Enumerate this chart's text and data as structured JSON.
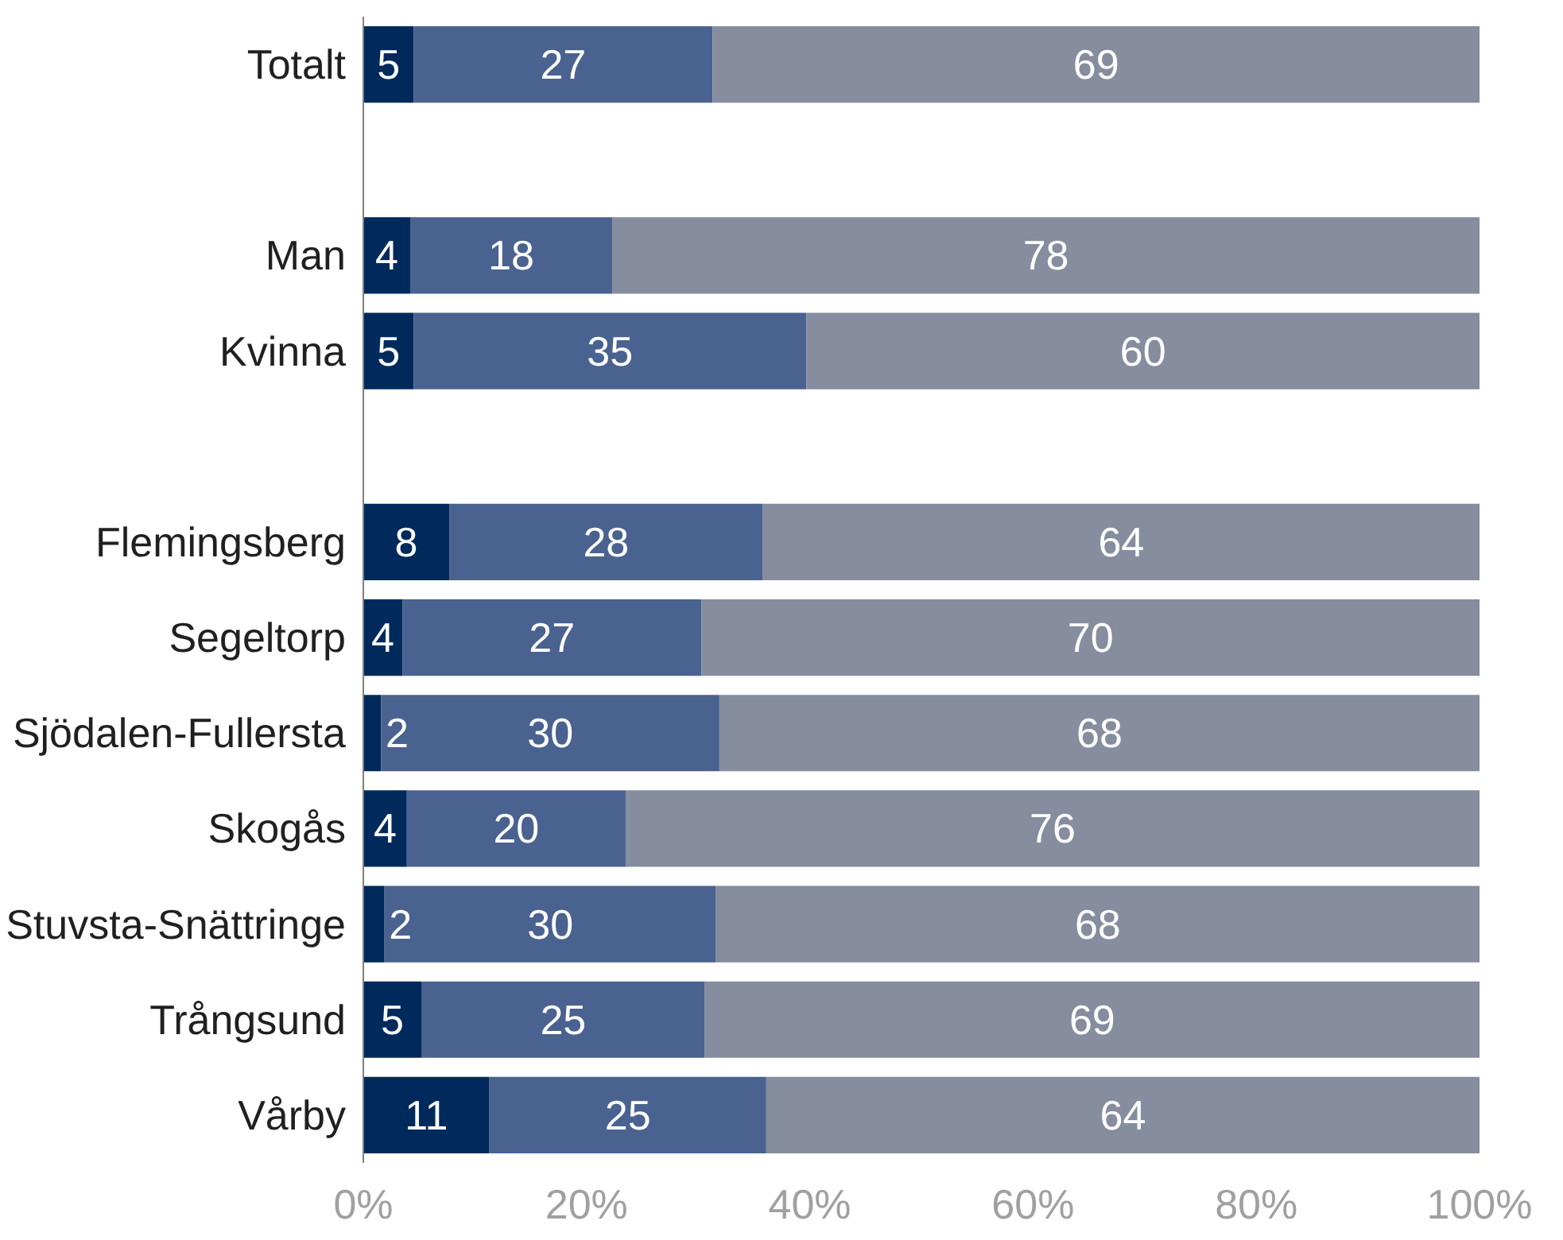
{
  "chart_data": {
    "type": "bar",
    "orientation": "horizontal",
    "stacked": true,
    "categories": [
      "Totalt",
      null,
      "Man",
      "Kvinna",
      null,
      "Flemingsberg",
      "Segeltorp",
      "Sjödalen-Fullersta",
      "Skogås",
      "Stuvsta-Snättringe",
      "Trångsund",
      "Vårby"
    ],
    "series": [
      {
        "color": "#002a5c",
        "values": [
          4.5,
          null,
          4.2,
          4.5,
          null,
          7.7,
          3.5,
          1.6,
          3.9,
          1.9,
          5.2,
          11.3
        ],
        "value_labels": [
          "5",
          null,
          "4",
          "5",
          null,
          "8",
          "4",
          "2",
          "4",
          "2",
          "5",
          "11"
        ]
      },
      {
        "color": "#4a6290",
        "values": [
          26.8,
          null,
          18.1,
          35.2,
          null,
          28.1,
          26.8,
          30.3,
          19.6,
          29.7,
          25.4,
          24.8
        ],
        "value_labels": [
          "27",
          null,
          "18",
          "35",
          null,
          "28",
          "27",
          "30",
          "20",
          "30",
          "25",
          "25"
        ]
      },
      {
        "color": "#858d9e",
        "values": [
          68.7,
          null,
          77.7,
          60.3,
          null,
          64.2,
          69.7,
          68.1,
          76.5,
          68.4,
          69.4,
          63.9
        ],
        "value_labels": [
          "69",
          null,
          "78",
          "60",
          null,
          "64",
          "70",
          "68",
          "76",
          "68",
          "69",
          "64"
        ]
      }
    ],
    "xlim": [
      0,
      100
    ],
    "xticks": [
      {
        "value": 0,
        "label": "0%"
      },
      {
        "value": 20,
        "label": "20%"
      },
      {
        "value": 40,
        "label": "40%"
      },
      {
        "value": 60,
        "label": "60%"
      },
      {
        "value": 80,
        "label": "80%"
      },
      {
        "value": 100,
        "label": "100%"
      }
    ],
    "grid": false
  }
}
